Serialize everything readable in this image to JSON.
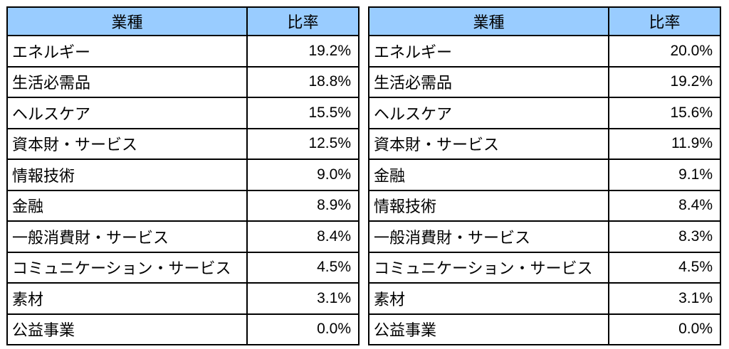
{
  "tables": [
    {
      "headers": {
        "sector": "業種",
        "ratio": "比率"
      },
      "rows": [
        {
          "sector": "エネルギー",
          "ratio": "19.2%"
        },
        {
          "sector": "生活必需品",
          "ratio": "18.8%"
        },
        {
          "sector": "ヘルスケア",
          "ratio": "15.5%"
        },
        {
          "sector": "資本財・サービス",
          "ratio": "12.5%"
        },
        {
          "sector": "情報技術",
          "ratio": "9.0%"
        },
        {
          "sector": "金融",
          "ratio": "8.9%"
        },
        {
          "sector": "一般消費財・サービス",
          "ratio": "8.4%"
        },
        {
          "sector": "コミュニケーション・サービス",
          "ratio": "4.5%"
        },
        {
          "sector": "素材",
          "ratio": "3.1%"
        },
        {
          "sector": "公益事業",
          "ratio": "0.0%"
        }
      ]
    },
    {
      "headers": {
        "sector": "業種",
        "ratio": "比率"
      },
      "rows": [
        {
          "sector": "エネルギー",
          "ratio": "20.0%"
        },
        {
          "sector": "生活必需品",
          "ratio": "19.2%"
        },
        {
          "sector": "ヘルスケア",
          "ratio": "15.6%"
        },
        {
          "sector": "資本財・サービス",
          "ratio": "11.9%"
        },
        {
          "sector": "金融",
          "ratio": "9.1%"
        },
        {
          "sector": "情報技術",
          "ratio": "8.4%"
        },
        {
          "sector": "一般消費財・サービス",
          "ratio": "8.3%"
        },
        {
          "sector": "コミュニケーション・サービス",
          "ratio": "4.5%"
        },
        {
          "sector": "素材",
          "ratio": "3.1%"
        },
        {
          "sector": "公益事業",
          "ratio": "0.0%"
        }
      ]
    }
  ],
  "colors": {
    "header_background": "#99ccff",
    "border": "#000000",
    "text": "#000000"
  }
}
